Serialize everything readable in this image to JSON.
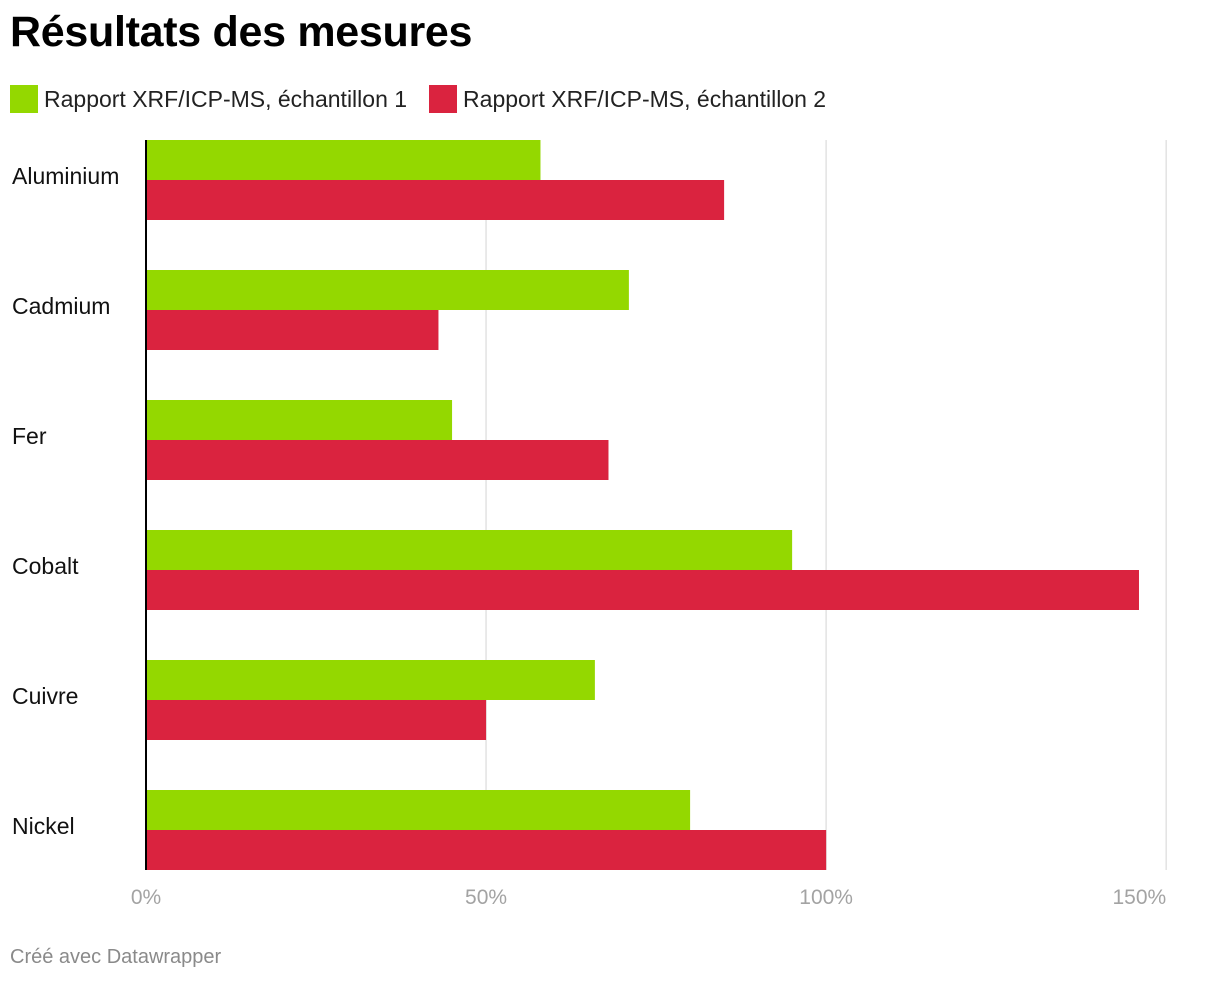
{
  "title": "Résultats des mesures",
  "footer": "Créé avec Datawrapper",
  "legend_items": [
    {
      "label": "Rapport XRF/ICP-MS, échantillon 1",
      "color": "#94d800"
    },
    {
      "label": "Rapport XRF/ICP-MS, échantillon 2",
      "color": "#da233f"
    }
  ],
  "chart_data": {
    "type": "bar",
    "orientation": "horizontal",
    "categories": [
      "Aluminium",
      "Cadmium",
      "Fer",
      "Cobalt",
      "Cuivre",
      "Nickel"
    ],
    "series": [
      {
        "name": "Rapport XRF/ICP-MS, échantillon 1",
        "color": "#94d800",
        "values": [
          58,
          71,
          45,
          95,
          66,
          80
        ]
      },
      {
        "name": "Rapport XRF/ICP-MS, échantillon 2",
        "color": "#da233f",
        "values": [
          85,
          43,
          68,
          146,
          50,
          100
        ]
      }
    ],
    "x_ticks": [
      0,
      50,
      100,
      150
    ],
    "x_tick_labels": [
      "0%",
      "50%",
      "100%",
      "150%"
    ],
    "xlim": [
      0,
      150
    ],
    "grid": true,
    "legend_position": "top-left"
  }
}
